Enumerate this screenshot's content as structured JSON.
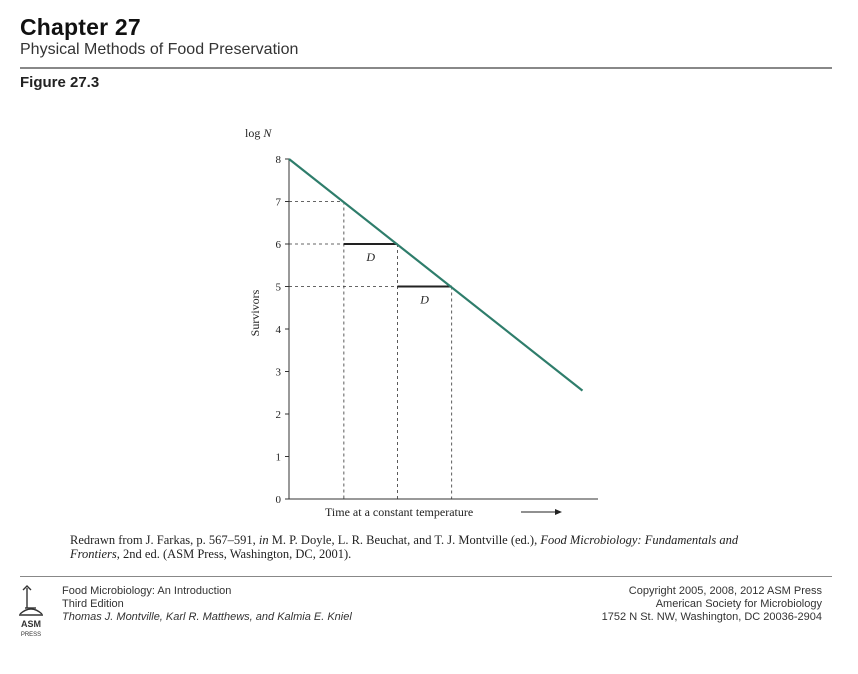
{
  "header": {
    "chapter": "Chapter 27",
    "subtitle": "Physical Methods of Food Preservation",
    "figure_label": "Figure 27.3"
  },
  "chart_data": {
    "type": "line",
    "ylabel_top": "log",
    "ylabel_top_var": "N",
    "ylabel": "Survivors",
    "xlabel": "Time at a constant temperature",
    "ylim": [
      0,
      8
    ],
    "xlim": [
      0,
      10
    ],
    "yticks": [
      "0",
      "1",
      "2",
      "3",
      "4",
      "5",
      "6",
      "7",
      "8"
    ],
    "series": [
      {
        "x": [
          0,
          9.2
        ],
        "y": [
          8,
          2.55
        ]
      }
    ],
    "reference_points": [
      {
        "x": 1.72,
        "y": 7
      },
      {
        "x": 3.4,
        "y": 6
      },
      {
        "x": 5.1,
        "y": 5
      }
    ],
    "d_markers": [
      {
        "from_x": 1.72,
        "to_x": 3.4,
        "y": 6,
        "label": "D"
      },
      {
        "from_x": 3.4,
        "to_x": 5.1,
        "y": 5,
        "label": "D"
      }
    ],
    "line_color": "#2e7d6b",
    "grid": false
  },
  "caption": {
    "part1": "Redrawn from J. Farkas, p. 567–591, ",
    "in": "in",
    "part2": " M. P. Doyle, L. R. Beuchat, and T. J. Montville (ed.), ",
    "book_title": "Food Microbiology: Fundamentals and Frontiers",
    "part3": ", 2nd ed. (ASM Press, Washington, DC, 2001)."
  },
  "footer": {
    "book_title": "Food Microbiology: An Introduction",
    "edition": "Third Edition",
    "authors": "Thomas J. Montville, Karl R. Matthews, and Kalmia E. Kniel",
    "copyright": "Copyright 2005, 2008, 2012 ASM Press",
    "society": "American Society for Microbiology",
    "address": "1752 N St. NW, Washington, DC 20036-2904",
    "logo_text": "ASM PRESS"
  }
}
